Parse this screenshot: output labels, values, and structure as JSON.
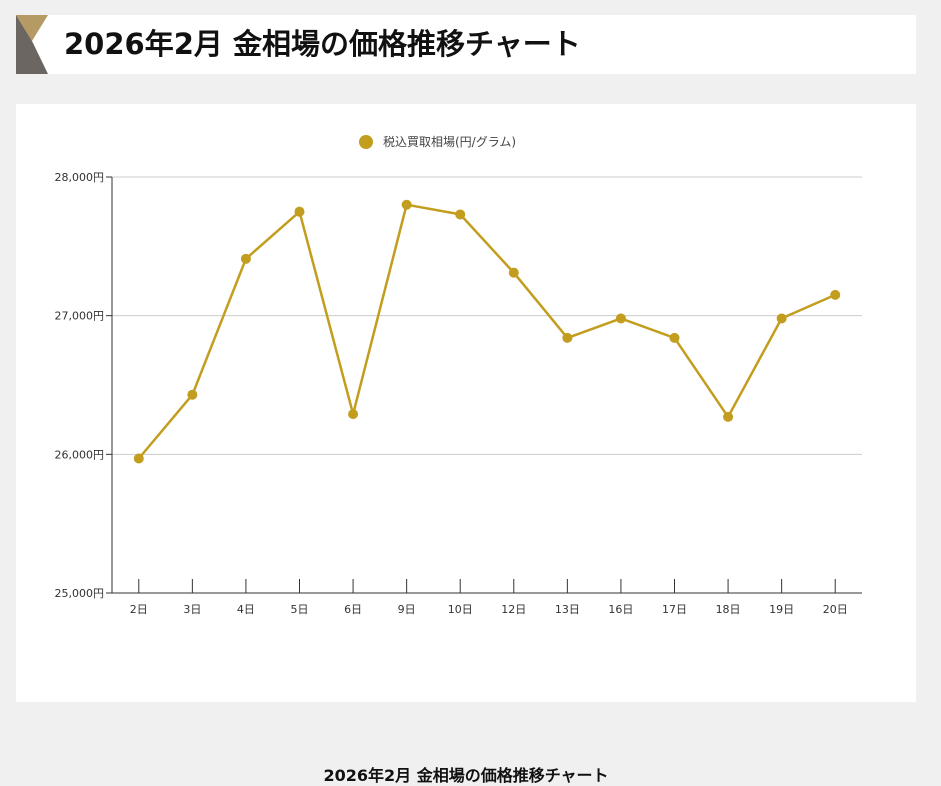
{
  "header": {
    "title": "2026年2月 金相場の価格推移チャート"
  },
  "chart_data": {
    "type": "line",
    "title": "",
    "caption": "2026年2月 金相場の価格推移チャート",
    "categories": [
      "2日",
      "3日",
      "4日",
      "5日",
      "6日",
      "9日",
      "10日",
      "12日",
      "13日",
      "16日",
      "17日",
      "18日",
      "19日",
      "20日"
    ],
    "series": [
      {
        "name": "税込買取相場(円/グラム)",
        "color": "#c39d1e",
        "values": [
          25970,
          26430,
          27410,
          27750,
          26290,
          27800,
          27730,
          27310,
          26840,
          26980,
          26840,
          26270,
          26980,
          27150
        ]
      }
    ],
    "y_ticks": [
      "25,000円",
      "26,000円",
      "27,000円",
      "28,000円"
    ],
    "ylim": [
      25000,
      28000
    ],
    "grid": true,
    "legend_position": "top-center",
    "colors": {
      "gridline": "#cccccc",
      "axis": "#333333"
    }
  }
}
